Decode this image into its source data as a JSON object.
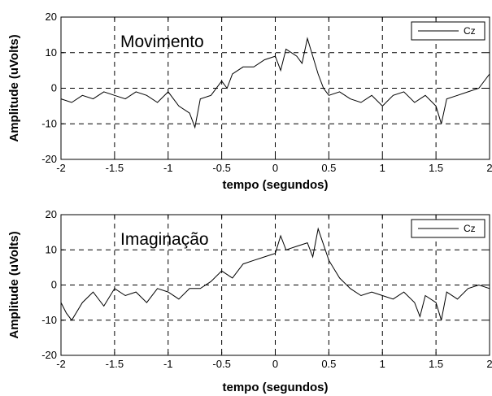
{
  "chart_data": [
    {
      "type": "line",
      "annotation": "Movimento",
      "xlabel": "tempo (segundos)",
      "ylabel": "Amplitude (uVolts)",
      "xlim": [
        -2,
        2
      ],
      "ylim": [
        -20,
        20
      ],
      "xticks": [
        "-2",
        "-1.5",
        "-1",
        "-0.5",
        "0",
        "0.5",
        "1",
        "1.5",
        "2"
      ],
      "yticks": [
        "20",
        "10",
        "0",
        "-10",
        "-20"
      ],
      "grid": true,
      "legend_position": "top-right",
      "series": [
        {
          "name": "Cz",
          "color": "#000000",
          "x": [
            -2.0,
            -1.9,
            -1.8,
            -1.7,
            -1.6,
            -1.5,
            -1.4,
            -1.3,
            -1.2,
            -1.1,
            -1.0,
            -0.9,
            -0.8,
            -0.75,
            -0.7,
            -0.6,
            -0.5,
            -0.45,
            -0.4,
            -0.3,
            -0.2,
            -0.1,
            0.0,
            0.05,
            0.1,
            0.2,
            0.25,
            0.3,
            0.35,
            0.4,
            0.45,
            0.5,
            0.6,
            0.7,
            0.8,
            0.9,
            1.0,
            1.1,
            1.2,
            1.3,
            1.4,
            1.5,
            1.55,
            1.6,
            1.7,
            1.8,
            1.9,
            2.0
          ],
          "y": [
            -3,
            -4,
            -2,
            -3,
            -1,
            -2,
            -3,
            -1,
            -2,
            -4,
            -1,
            -5,
            -7,
            -11,
            -3,
            -2,
            2,
            0,
            4,
            6,
            6,
            8,
            9,
            5,
            11,
            9,
            7,
            14,
            9,
            4,
            0,
            -2,
            -1,
            -3,
            -4,
            -2,
            -5,
            -2,
            -1,
            -4,
            -2,
            -5,
            -10,
            -3,
            -2,
            -1,
            0,
            4
          ]
        }
      ]
    },
    {
      "type": "line",
      "annotation": "Imaginação",
      "xlabel": "tempo (segundos)",
      "ylabel": "Amplitude (uVolts)",
      "xlim": [
        -2,
        2
      ],
      "ylim": [
        -20,
        20
      ],
      "xticks": [
        "-2",
        "-1.5",
        "-1",
        "-0.5",
        "0",
        "0.5",
        "1",
        "1.5",
        "2"
      ],
      "yticks": [
        "20",
        "10",
        "0",
        "-10",
        "-20"
      ],
      "grid": true,
      "legend_position": "top-right",
      "series": [
        {
          "name": "Cz",
          "color": "#000000",
          "x": [
            -2.0,
            -1.95,
            -1.9,
            -1.8,
            -1.7,
            -1.6,
            -1.5,
            -1.4,
            -1.3,
            -1.2,
            -1.1,
            -1.0,
            -0.9,
            -0.8,
            -0.7,
            -0.6,
            -0.5,
            -0.4,
            -0.3,
            -0.2,
            -0.1,
            0.0,
            0.05,
            0.1,
            0.2,
            0.3,
            0.35,
            0.4,
            0.5,
            0.6,
            0.7,
            0.8,
            0.9,
            1.0,
            1.1,
            1.2,
            1.3,
            1.35,
            1.4,
            1.5,
            1.55,
            1.6,
            1.7,
            1.8,
            1.9,
            2.0
          ],
          "y": [
            -5,
            -8,
            -10,
            -5,
            -2,
            -6,
            -1,
            -3,
            -2,
            -5,
            -1,
            -2,
            -4,
            -1,
            -1,
            1,
            4,
            2,
            6,
            7,
            8,
            9,
            14,
            10,
            11,
            12,
            8,
            16,
            7,
            2,
            -1,
            -3,
            -2,
            -3,
            -4,
            -2,
            -5,
            -9,
            -3,
            -5,
            -10,
            -2,
            -4,
            -1,
            0,
            -1
          ]
        }
      ]
    }
  ]
}
